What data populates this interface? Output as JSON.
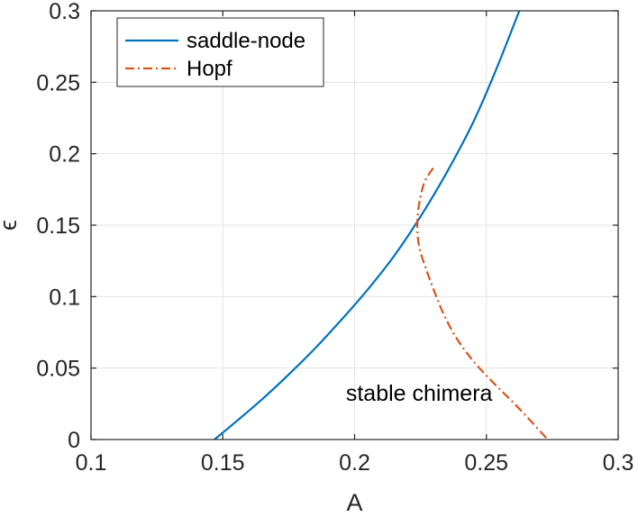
{
  "chart_data": {
    "type": "line",
    "xlabel": "A",
    "ylabel": "ϵ",
    "xlim": [
      0.1,
      0.3
    ],
    "ylim": [
      0,
      0.3
    ],
    "xticks": [
      0.1,
      0.15,
      0.2,
      0.25,
      0.3
    ],
    "xtick_labels": [
      "0.1",
      "0.15",
      "0.2",
      "0.25",
      "0.3"
    ],
    "yticks": [
      0,
      0.05,
      0.1,
      0.15,
      0.2,
      0.25,
      0.3
    ],
    "ytick_labels": [
      "0",
      "0.05",
      "0.1",
      "0.15",
      "0.2",
      "0.25",
      "0.3"
    ],
    "grid": true,
    "legend_position": "top-left",
    "series": [
      {
        "name": "saddle-node",
        "color": "#0072BD",
        "style": "solid",
        "x": [
          0.1468,
          0.155,
          0.165,
          0.175,
          0.185,
          0.195,
          0.205,
          0.215,
          0.225,
          0.235,
          0.245,
          0.2535,
          0.2625
        ],
        "y": [
          0.0,
          0.0125,
          0.0283,
          0.0455,
          0.0638,
          0.0838,
          0.105,
          0.1285,
          0.156,
          0.187,
          0.222,
          0.258,
          0.3
        ]
      },
      {
        "name": "Hopf",
        "color": "#D95319",
        "style": "dashdot",
        "x": [
          0.2298,
          0.2265,
          0.2245,
          0.2238,
          0.2245,
          0.227,
          0.231,
          0.2345,
          0.239,
          0.245,
          0.2525,
          0.262,
          0.2733
        ],
        "y": [
          0.19,
          0.18,
          0.165,
          0.15,
          0.135,
          0.12,
          0.1,
          0.085,
          0.07,
          0.055,
          0.04,
          0.0225,
          0.0
        ]
      }
    ],
    "annotations": [
      {
        "text": "stable chimera",
        "x": 0.2245,
        "y": 0.027
      }
    ]
  }
}
